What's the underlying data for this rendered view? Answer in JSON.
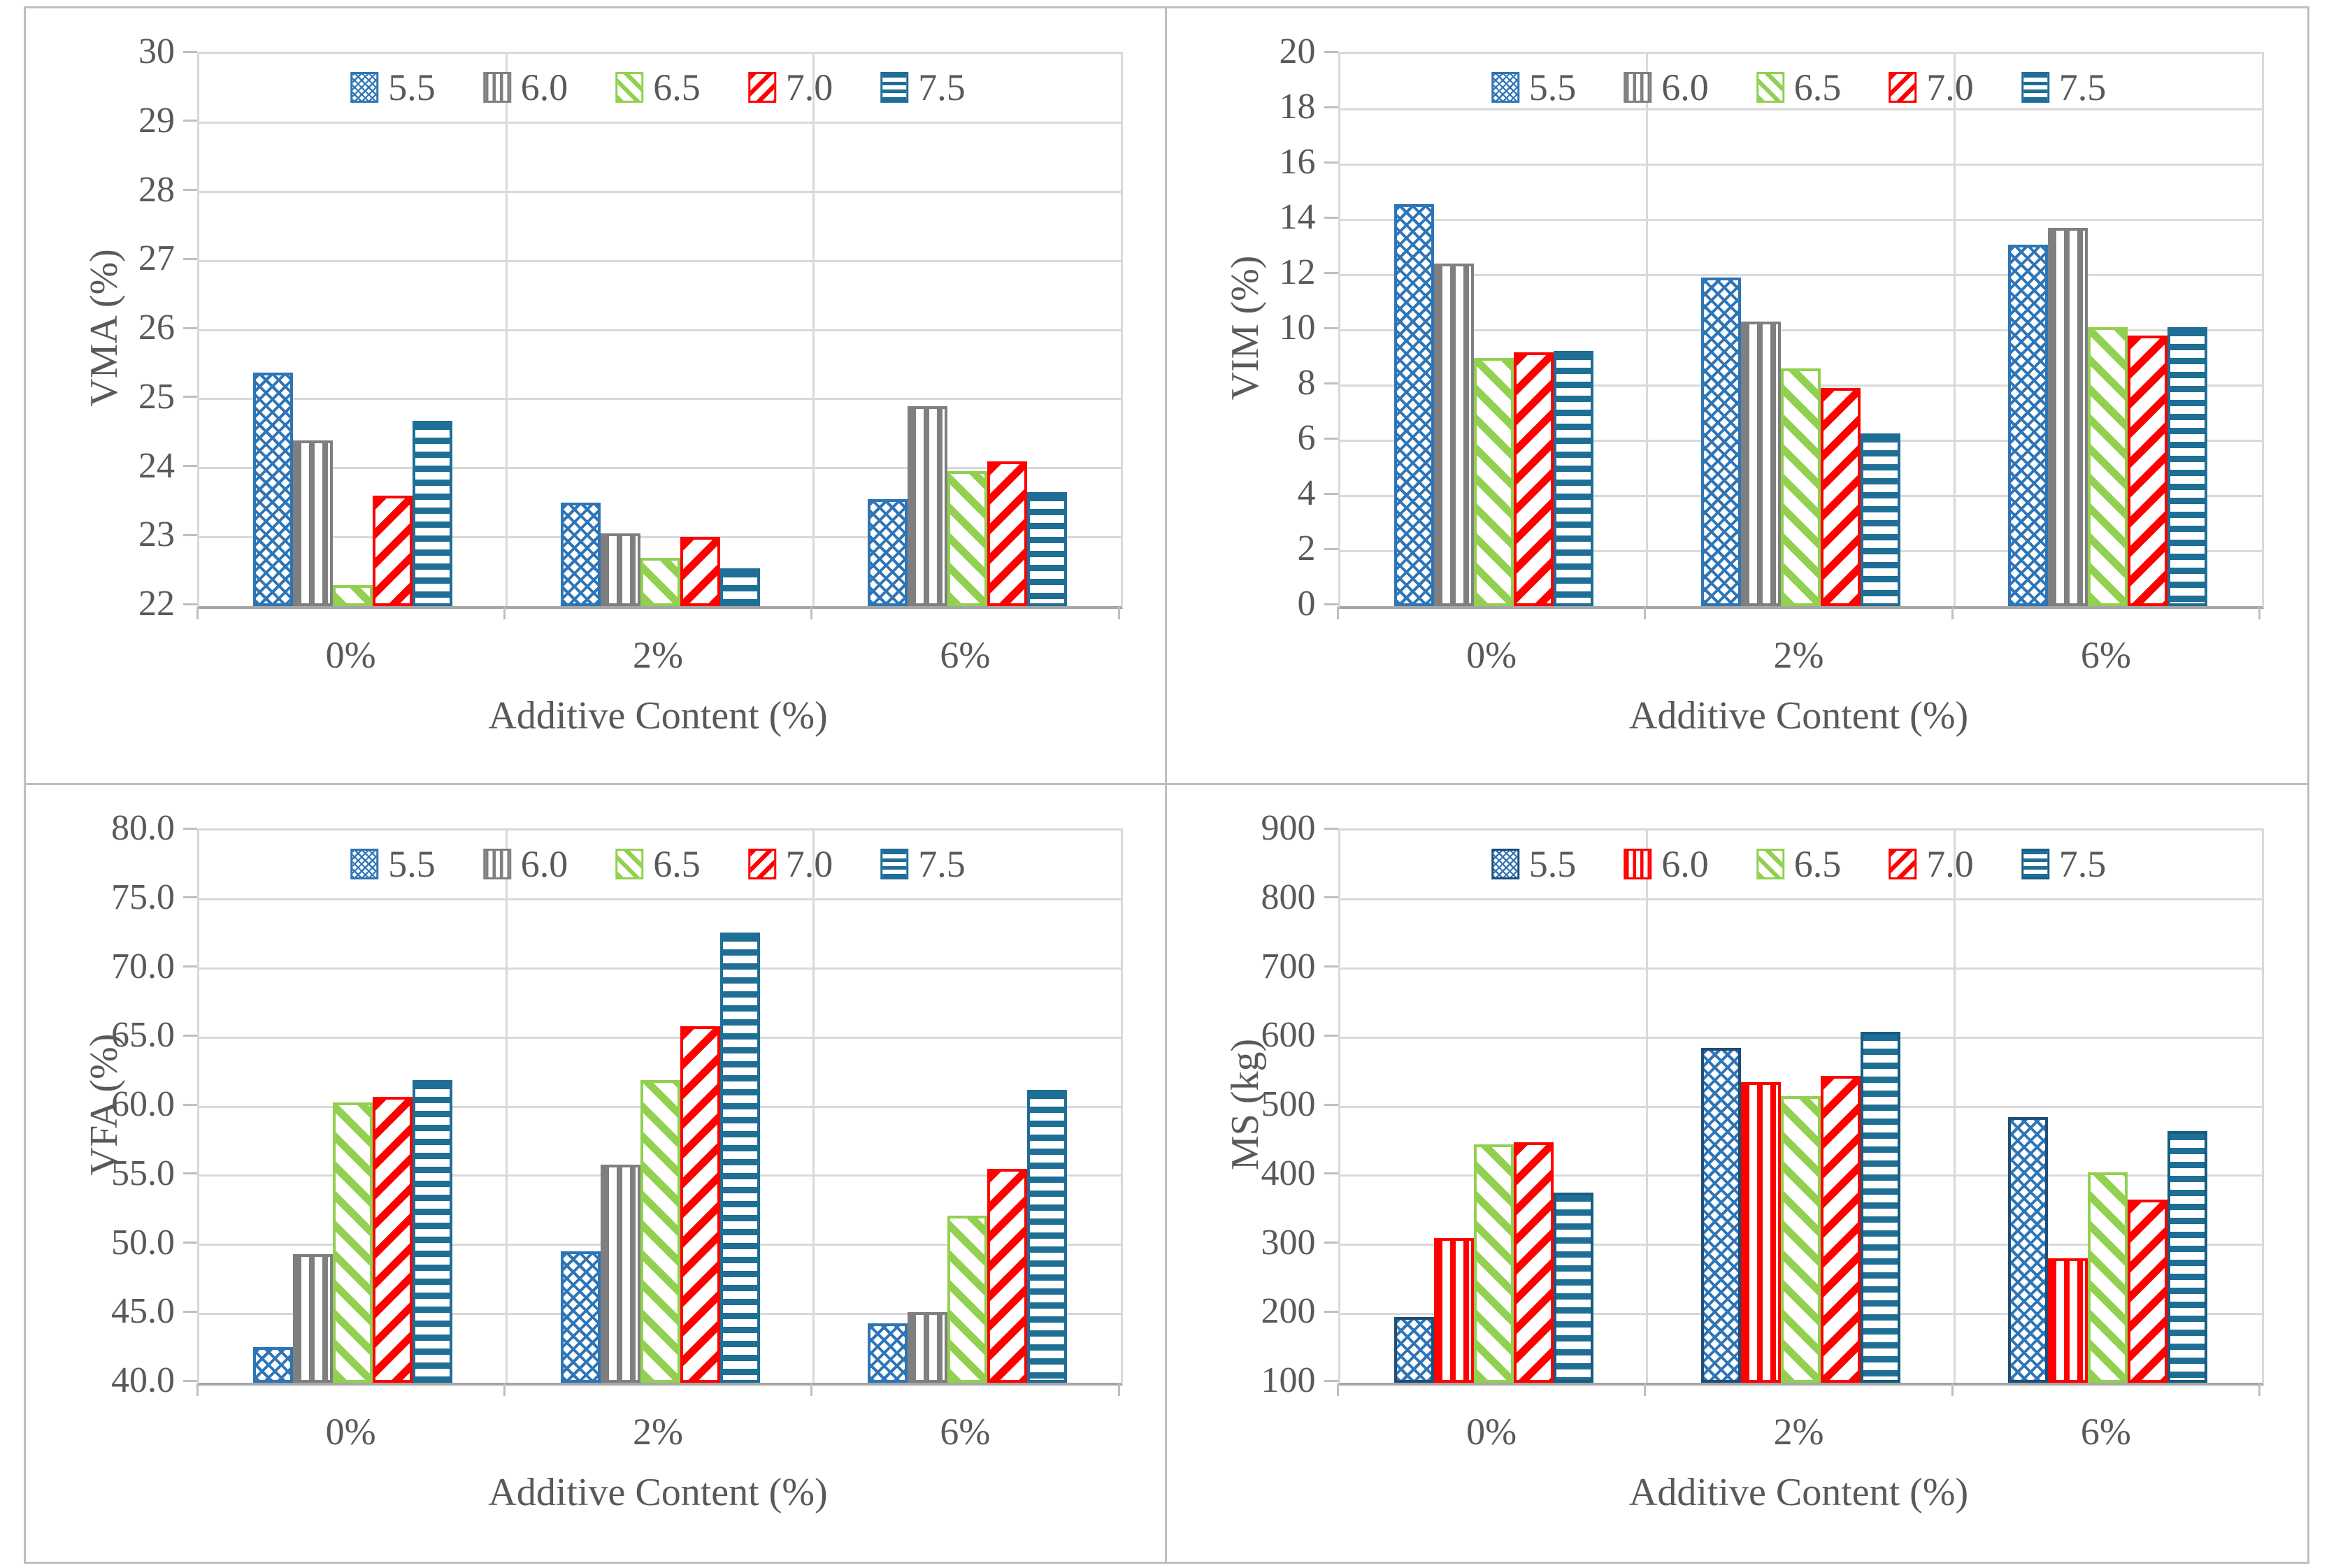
{
  "figure": {
    "panel_names": [
      "vma-chart",
      "vim-chart",
      "vfa-chart",
      "ms-chart"
    ],
    "border_color": "#BFBFBF",
    "gridline_color": "#D9D9D9",
    "axis_line_color": "#A6A6A6",
    "text_color": "#595959"
  },
  "chart_data": [
    {
      "id": "vma",
      "type": "bar",
      "title": "",
      "xlabel": "Additive Content (%)",
      "ylabel": "VMA (%)",
      "categories": [
        "0%",
        "2%",
        "6%"
      ],
      "ylim": [
        22,
        30
      ],
      "y_step": 1,
      "y_tick_labels": [
        "30",
        "29",
        "28",
        "27",
        "26",
        "25",
        "24",
        "23",
        "22"
      ],
      "grid": true,
      "legend_position": "top-center",
      "series": [
        {
          "name": "5.5",
          "pattern": "crosshatch",
          "color": "#2E75B6",
          "border": "#2E75B6",
          "values": [
            25.38,
            23.5,
            23.55
          ]
        },
        {
          "name": "6.0",
          "pattern": "vertical",
          "color": "#7F7F7F",
          "border": "#7F7F7F",
          "values": [
            24.4,
            23.05,
            24.9
          ]
        },
        {
          "name": "6.5",
          "pattern": "diag-down",
          "color": "#92D050",
          "border": "#92D050",
          "values": [
            22.3,
            22.7,
            23.95
          ]
        },
        {
          "name": "7.0",
          "pattern": "diag-up",
          "color": "#FF0000",
          "border": "#FF0000",
          "values": [
            23.6,
            23.0,
            24.1
          ]
        },
        {
          "name": "7.5",
          "pattern": "horizontal",
          "color": "#1F6E96",
          "border": "#1F6E96",
          "values": [
            24.68,
            22.55,
            23.65
          ]
        }
      ]
    },
    {
      "id": "vim",
      "type": "bar",
      "title": "",
      "xlabel": "Additive Content (%)",
      "ylabel": "VIM (%)",
      "categories": [
        "0%",
        "2%",
        "6%"
      ],
      "ylim": [
        0,
        20
      ],
      "y_step": 2,
      "y_tick_labels": [
        "20",
        "18",
        "16",
        "14",
        "12",
        "10",
        "8",
        "6",
        "4",
        "2",
        "0"
      ],
      "grid": true,
      "legend_position": "top-center",
      "series": [
        {
          "name": "5.5",
          "pattern": "crosshatch",
          "color": "#2E75B6",
          "border": "#2E75B6",
          "values": [
            14.55,
            11.9,
            13.1
          ]
        },
        {
          "name": "6.0",
          "pattern": "vertical",
          "color": "#7F7F7F",
          "border": "#7F7F7F",
          "values": [
            12.4,
            10.3,
            13.7
          ]
        },
        {
          "name": "6.5",
          "pattern": "diag-down",
          "color": "#92D050",
          "border": "#92D050",
          "values": [
            9.0,
            8.6,
            10.1
          ]
        },
        {
          "name": "7.0",
          "pattern": "diag-up",
          "color": "#FF0000",
          "border": "#FF0000",
          "values": [
            9.2,
            7.9,
            9.8
          ]
        },
        {
          "name": "7.5",
          "pattern": "horizontal",
          "color": "#1F6E96",
          "border": "#1F6E96",
          "values": [
            9.25,
            6.25,
            10.1
          ]
        }
      ]
    },
    {
      "id": "vfa",
      "type": "bar",
      "title": "",
      "xlabel": "Additive Content (%)",
      "ylabel": "VFA (%)",
      "categories": [
        "0%",
        "2%",
        "6%"
      ],
      "ylim": [
        40,
        80
      ],
      "y_step": 5,
      "y_tick_labels": [
        "80.0",
        "75.0",
        "70.0",
        "65.0",
        "60.0",
        "55.0",
        "50.0",
        "45.0",
        "40.0"
      ],
      "grid": true,
      "legend_position": "top-center",
      "series": [
        {
          "name": "5.5",
          "pattern": "crosshatch",
          "color": "#2E75B6",
          "border": "#2E75B6",
          "values": [
            42.6,
            49.5,
            44.3
          ]
        },
        {
          "name": "6.0",
          "pattern": "vertical",
          "color": "#7F7F7F",
          "border": "#7F7F7F",
          "values": [
            49.3,
            55.8,
            45.1
          ]
        },
        {
          "name": "6.5",
          "pattern": "diag-down",
          "color": "#92D050",
          "border": "#92D050",
          "values": [
            60.3,
            61.9,
            52.1
          ]
        },
        {
          "name": "7.0",
          "pattern": "diag-up",
          "color": "#FF0000",
          "border": "#FF0000",
          "values": [
            60.7,
            65.8,
            55.5
          ]
        },
        {
          "name": "7.5",
          "pattern": "horizontal",
          "color": "#1F6E96",
          "border": "#1F6E96",
          "values": [
            61.9,
            72.6,
            61.2
          ]
        }
      ]
    },
    {
      "id": "ms",
      "type": "bar",
      "title": "",
      "xlabel": "Additive Content (%)",
      "ylabel": "MS  (kg)",
      "categories": [
        "0%",
        "2%",
        "6%"
      ],
      "ylim": [
        100,
        900
      ],
      "y_step": 100,
      "y_tick_labels": [
        "900",
        "800",
        "700",
        "600",
        "500",
        "400",
        "300",
        "200",
        "100"
      ],
      "grid": true,
      "legend_position": "top-center",
      "series": [
        {
          "name": "5.5",
          "pattern": "crosshatch",
          "color": "#2E75B6",
          "border": "#1F4E79",
          "values": [
            195,
            585,
            485
          ]
        },
        {
          "name": "6.0",
          "pattern": "vertical",
          "color": "#FF0000",
          "border": "#FF0000",
          "values": [
            310,
            535,
            280
          ]
        },
        {
          "name": "6.5",
          "pattern": "diag-down",
          "color": "#92D050",
          "border": "#92D050",
          "values": [
            445,
            515,
            405
          ]
        },
        {
          "name": "7.0",
          "pattern": "diag-up",
          "color": "#FF0000",
          "border": "#FF0000",
          "values": [
            448,
            545,
            365
          ]
        },
        {
          "name": "7.5",
          "pattern": "horizontal",
          "color": "#1F6E96",
          "border": "#155E80",
          "values": [
            375,
            608,
            465
          ]
        }
      ]
    }
  ]
}
